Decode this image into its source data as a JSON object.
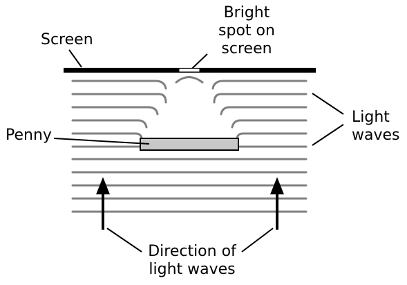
{
  "labels": {
    "screen": "Screen",
    "bright_spot_line1": "Bright",
    "bright_spot_line2": "spot on",
    "bright_spot_line3": "screen",
    "light_waves_line1": "Light",
    "light_waves_line2": "waves",
    "penny": "Penny",
    "direction_line1": "Direction of",
    "direction_line2": "light waves"
  },
  "colors": {
    "ink": "#000000",
    "wave": "#808080",
    "penny_fill": "#c8c8c8",
    "bright_spot": "#ffffff"
  }
}
